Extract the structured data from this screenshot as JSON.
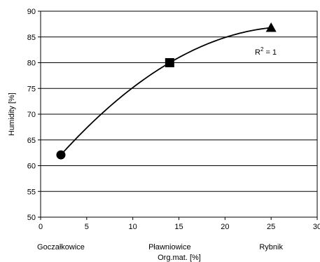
{
  "chart_data": {
    "type": "scatter",
    "xlabel": "Org.mat. [%]",
    "ylabel": "Humidity [%]",
    "xlim": [
      0,
      30
    ],
    "ylim": [
      50,
      90
    ],
    "x_ticks": [
      "0",
      "5",
      "10",
      "15",
      "20",
      "25",
      "30"
    ],
    "y_ticks": [
      "50",
      "55",
      "60",
      "65",
      "70",
      "75",
      "80",
      "85",
      "90"
    ],
    "grid": "horizontal",
    "points": [
      {
        "label": "Goczałkowice",
        "x": 2.2,
        "y": 62.1,
        "marker": "circle"
      },
      {
        "label": "Pławniowice",
        "x": 14.0,
        "y": 80.0,
        "marker": "square"
      },
      {
        "label": "Rybnik",
        "x": 25.0,
        "y": 86.8,
        "marker": "triangle"
      }
    ],
    "trendline": {
      "type": "polynomial",
      "r2_text": "R² = 1"
    },
    "site_labels": [
      "Goczałkowice",
      "Pławniowice",
      "Rybnik"
    ]
  }
}
